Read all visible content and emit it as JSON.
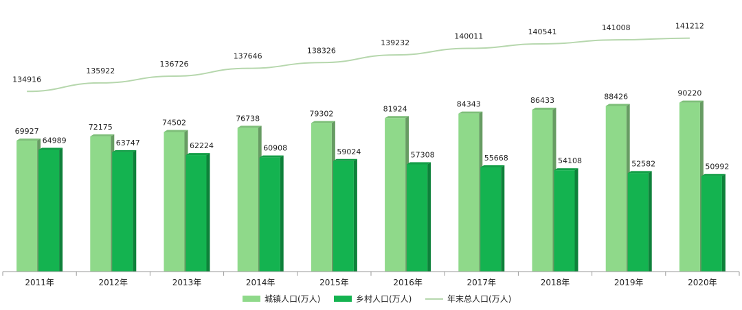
{
  "chart_data": {
    "type": "bar",
    "categories": [
      "2011年",
      "2012年",
      "2013年",
      "2014年",
      "2015年",
      "2016年",
      "2017年",
      "2018年",
      "2019年",
      "2020年"
    ],
    "series": [
      {
        "name": "城镇人口(万人)",
        "type": "bar",
        "color": "#8fd98a",
        "values": [
          69927,
          72175,
          74502,
          76738,
          79302,
          81924,
          84343,
          86433,
          88426,
          90220
        ]
      },
      {
        "name": "乡村人口(万人)",
        "type": "bar",
        "color": "#14b350",
        "values": [
          64989,
          63747,
          62224,
          60908,
          59024,
          57308,
          55668,
          54108,
          52582,
          50992
        ]
      },
      {
        "name": "年末总人口(万人)",
        "type": "line",
        "color": "#b6d7ad",
        "values": [
          134916,
          135922,
          136726,
          137646,
          138326,
          139232,
          140011,
          140541,
          141008,
          141212
        ]
      }
    ],
    "title": "",
    "xlabel": "",
    "ylabel": "",
    "legend": "bottom",
    "grid": false
  }
}
